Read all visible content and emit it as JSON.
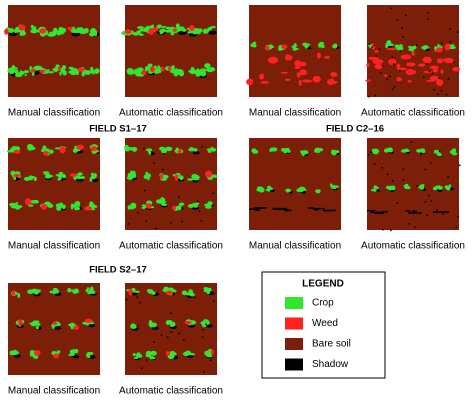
{
  "top_row": {
    "panels": [
      {
        "caption": "Manual classification"
      },
      {
        "caption": "Automatic classification"
      },
      {
        "caption": "Manual classification"
      },
      {
        "caption": "Automatic classification"
      }
    ]
  },
  "fields": [
    {
      "title": "FIELD S1–17",
      "panels": [
        {
          "caption": "Manual classification"
        },
        {
          "caption": "Automatic classification"
        }
      ]
    },
    {
      "title": "FIELD C2–16",
      "panels": [
        {
          "caption": "Manual classification"
        },
        {
          "caption": "Automatic classification"
        }
      ]
    },
    {
      "title": "FIELD S2–17",
      "panels": [
        {
          "caption": "Manual classification"
        },
        {
          "caption": "Automatic classification"
        }
      ]
    }
  ],
  "legend": {
    "title": "LEGEND",
    "items": [
      {
        "label": "Crop",
        "color": "#2ee82e"
      },
      {
        "label": "Weed",
        "color": "#ff2020"
      },
      {
        "label": "Bare soil",
        "color": "#7d1e08"
      },
      {
        "label": "Shadow",
        "color": "#000000"
      }
    ]
  }
}
